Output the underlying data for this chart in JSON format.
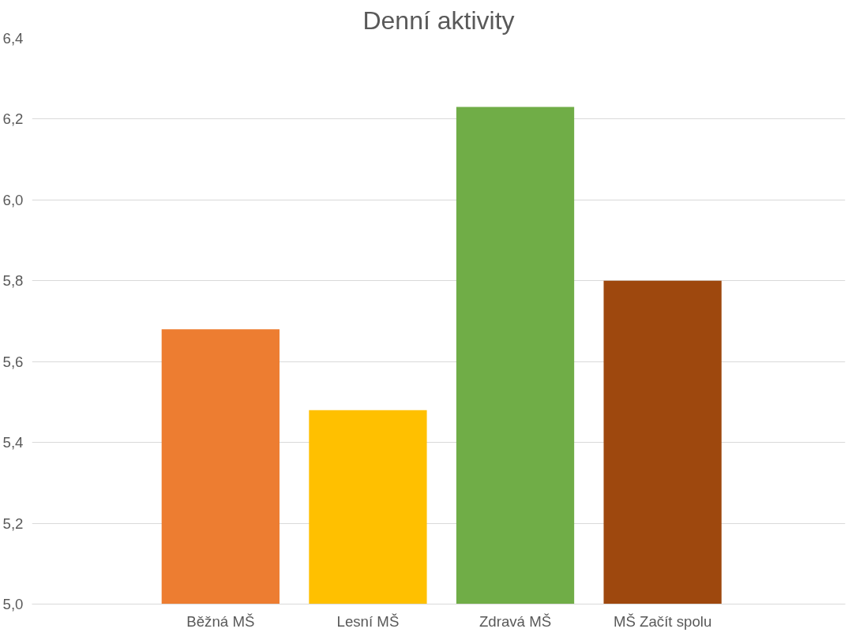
{
  "chart_data": {
    "type": "bar",
    "title": "Denní aktivity",
    "categories": [
      "Běžná MŠ",
      "Lesní MŠ",
      "Zdravá MŠ",
      "MŠ Začít spolu"
    ],
    "values": [
      5.68,
      5.48,
      6.23,
      5.8
    ],
    "colors": [
      "#ed7d31",
      "#ffc000",
      "#70ad47",
      "#9e480e"
    ],
    "ylim": [
      5.0,
      6.4
    ],
    "yticks": [
      {
        "value": 5.0,
        "label": "5,0"
      },
      {
        "value": 5.2,
        "label": "5,2"
      },
      {
        "value": 5.4,
        "label": "5,4"
      },
      {
        "value": 5.6,
        "label": "5,6"
      },
      {
        "value": 5.8,
        "label": "5,8"
      },
      {
        "value": 6.0,
        "label": "6,0"
      },
      {
        "value": 6.2,
        "label": "6,2"
      },
      {
        "value": 6.4,
        "label": "6,4"
      }
    ],
    "grid": "y"
  }
}
